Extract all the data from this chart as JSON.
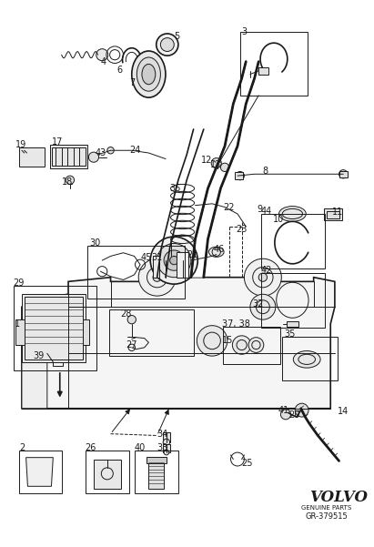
{
  "bg": "#ffffff",
  "lc": "#1a1a1a",
  "fig_w": 4.11,
  "fig_h": 6.01,
  "dpi": 100,
  "volvo": "VOLVO",
  "genuine": "GENUINE PARTS",
  "partnum": "GR-379515"
}
